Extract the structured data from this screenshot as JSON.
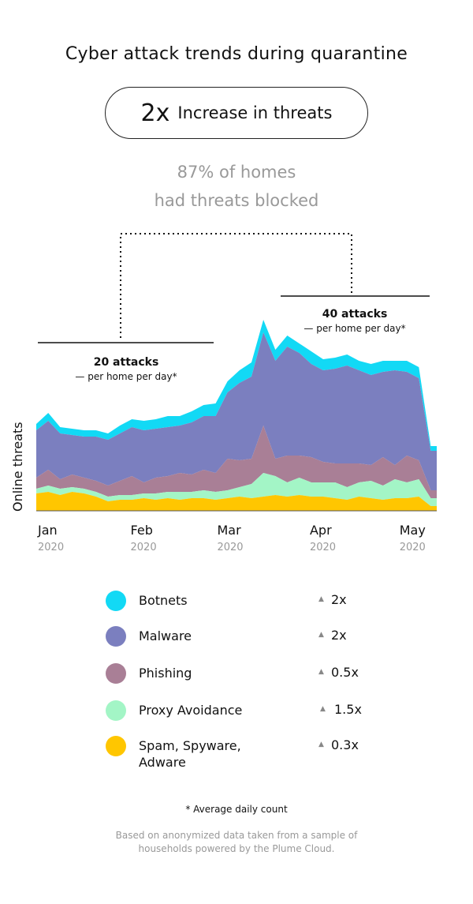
{
  "title": "Cyber attack trends during quarantine",
  "headline": {
    "number": "2x",
    "text": "Increase in threats"
  },
  "subtitle": {
    "line1": "87% of homes",
    "line2": "had threats blocked"
  },
  "periods": [
    {
      "count": "20 attacks",
      "unit": "— per home per day*"
    },
    {
      "count": "40 attacks",
      "unit": "— per home per day*"
    }
  ],
  "legend": [
    {
      "name": "Botnets",
      "change": "2x",
      "color": "#12d9f5"
    },
    {
      "name": "Malware",
      "change": "2x",
      "color": "#7b7fbf"
    },
    {
      "name": "Phishing",
      "change": "0.5x",
      "color": "#a97f96"
    },
    {
      "name": "Proxy Avoidance",
      "change": "1.5x",
      "color": "#a3f5c6"
    },
    {
      "name": "Spam, Spyware, Adware",
      "change": "0.3x",
      "color": "#ffc600"
    }
  ],
  "footnote": "* Average daily count",
  "source_line1": "Based on anonymized data taken from a sample of",
  "source_line2": "households powered by the Plume Cloud.",
  "chart_data": {
    "type": "area",
    "stacked": true,
    "ylabel": "Online threats",
    "x_ticks": [
      {
        "month": "Jan",
        "year": "2020",
        "day": 0
      },
      {
        "month": "Feb",
        "year": "2020",
        "day": 31
      },
      {
        "month": "Mar",
        "year": "2020",
        "day": 60
      },
      {
        "month": "Apr",
        "year": "2020",
        "day": 91
      },
      {
        "month": "May",
        "year": "2020",
        "day": 121
      }
    ],
    "x_range": [
      0,
      134
    ],
    "ylim": [
      0,
      240
    ],
    "series_order": [
      "Spam, Spyware, Adware",
      "Proxy Avoidance",
      "Phishing",
      "Malware",
      "Botnets"
    ],
    "x": [
      0,
      4,
      8,
      12,
      16,
      20,
      24,
      28,
      32,
      36,
      40,
      44,
      48,
      52,
      56,
      60,
      64,
      68,
      72,
      76,
      80,
      84,
      88,
      92,
      96,
      100,
      104,
      108,
      112,
      116,
      120,
      124,
      128,
      132,
      134
    ],
    "spam": [
      22,
      24,
      20,
      24,
      22,
      18,
      12,
      14,
      14,
      16,
      14,
      16,
      14,
      16,
      16,
      14,
      16,
      18,
      16,
      18,
      20,
      18,
      20,
      18,
      18,
      16,
      14,
      18,
      16,
      14,
      16,
      16,
      18,
      6,
      6
    ],
    "proxy": [
      6,
      8,
      8,
      6,
      6,
      6,
      6,
      6,
      6,
      6,
      8,
      8,
      10,
      8,
      10,
      10,
      10,
      12,
      18,
      30,
      24,
      18,
      22,
      18,
      18,
      20,
      16,
      18,
      22,
      18,
      24,
      20,
      22,
      10,
      10
    ],
    "phishing": [
      14,
      20,
      12,
      16,
      14,
      14,
      14,
      18,
      24,
      14,
      20,
      20,
      24,
      22,
      26,
      24,
      40,
      34,
      32,
      60,
      22,
      34,
      28,
      32,
      26,
      24,
      30,
      24,
      20,
      36,
      18,
      34,
      24,
      10,
      10
    ],
    "malware": [
      60,
      62,
      58,
      50,
      52,
      56,
      58,
      60,
      62,
      66,
      62,
      62,
      60,
      66,
      68,
      72,
      84,
      98,
      104,
      118,
      124,
      138,
      130,
      118,
      116,
      120,
      124,
      118,
      114,
      108,
      120,
      106,
      104,
      50,
      50
    ],
    "botnets": [
      8,
      10,
      8,
      8,
      8,
      8,
      8,
      10,
      10,
      12,
      12,
      14,
      12,
      14,
      14,
      16,
      14,
      16,
      18,
      16,
      14,
      14,
      12,
      16,
      14,
      14,
      14,
      12,
      14,
      14,
      12,
      14,
      14,
      6,
      6
    ]
  }
}
